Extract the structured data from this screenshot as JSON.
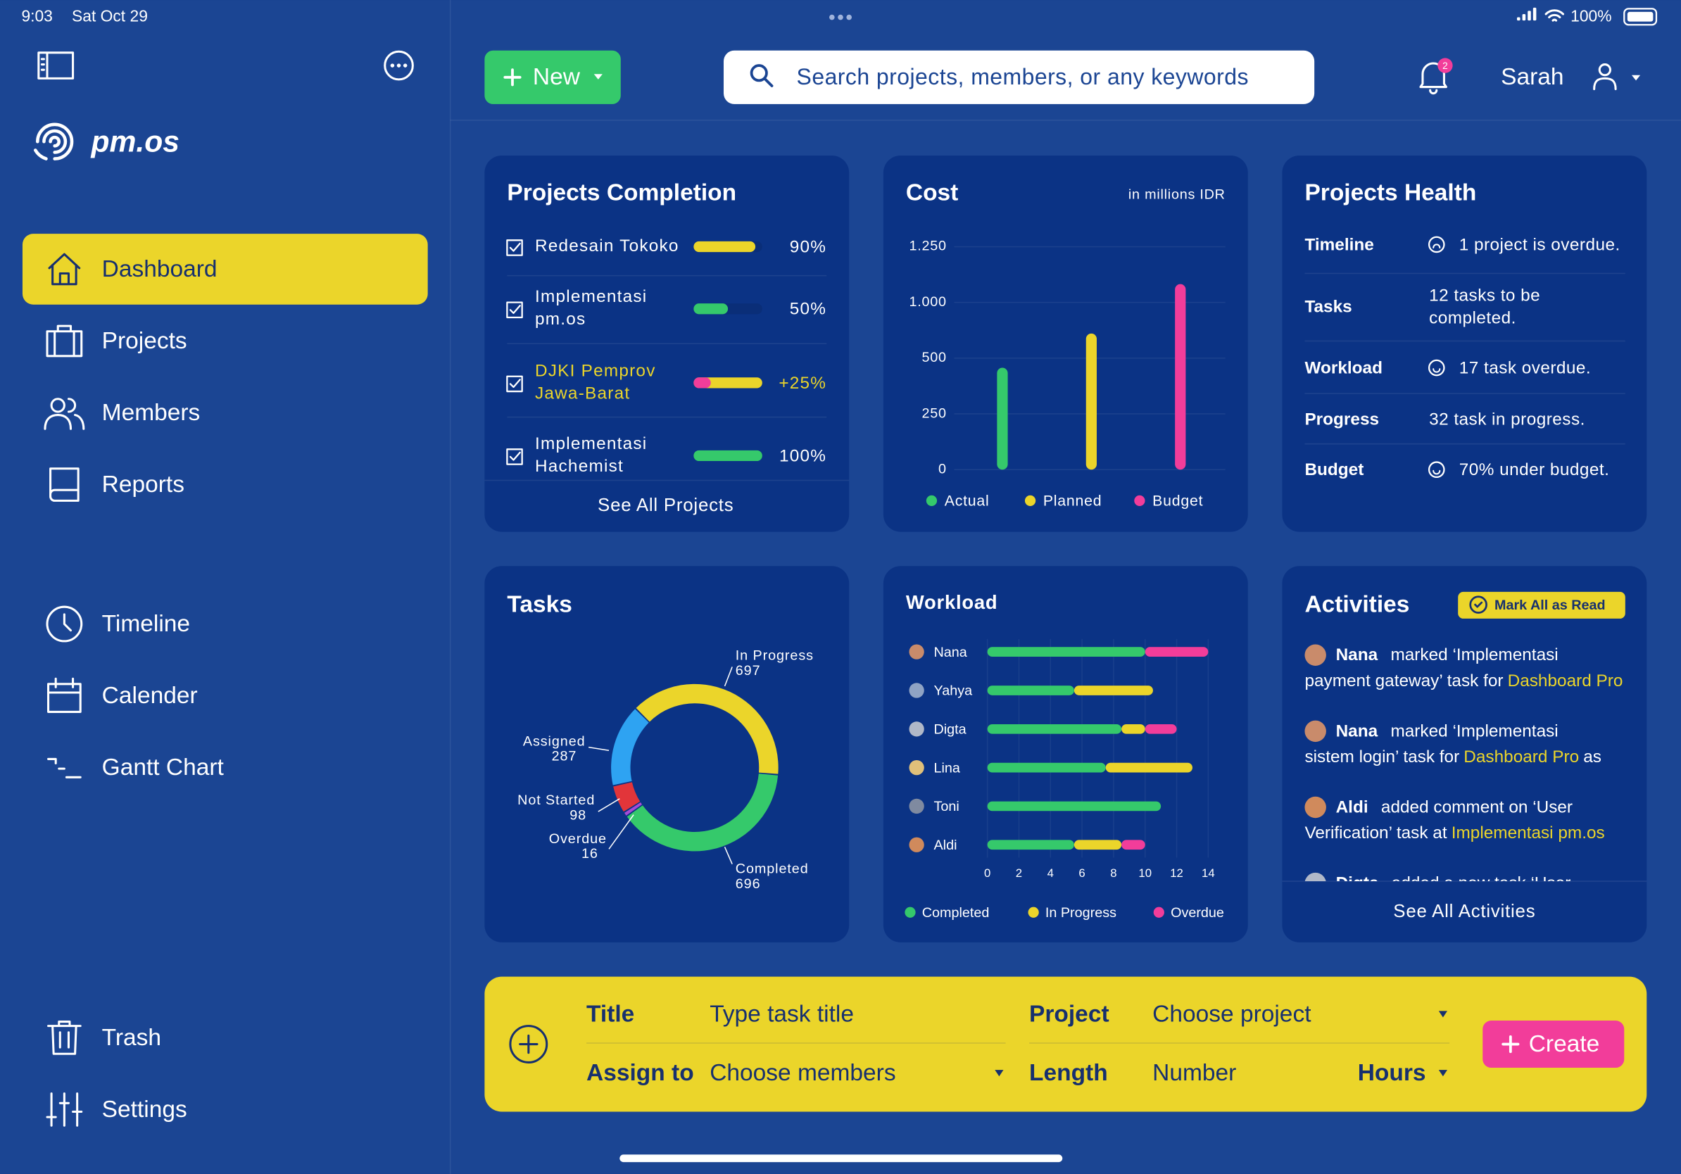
{
  "status_bar": {
    "time": "9:03",
    "date": "Sat Oct 29",
    "battery": "100%"
  },
  "sidebar": {
    "brand": "pm.os",
    "main_nav": [
      "Dashboard",
      "Projects",
      "Members",
      "Reports"
    ],
    "planning_nav": [
      "Timeline",
      "Calender",
      "Gantt Chart"
    ],
    "bottom_nav": [
      "Trash",
      "Settings"
    ]
  },
  "top_bar": {
    "new_button": "New",
    "search_placeholder": "Search projects, members, or any keywords",
    "notification_badge": "2",
    "user_name": "Sarah"
  },
  "projects_completion": {
    "title": "Projects Completion",
    "projects": [
      {
        "name": [
          "Redesain Tokoko"
        ],
        "value": 90,
        "label": "90%",
        "color": "#ebd52a"
      },
      {
        "name": [
          "Implementasi",
          "pm.os"
        ],
        "value": 50,
        "label": "50%",
        "color": "#35c96b"
      },
      {
        "name": [
          "DJKI Pemprov",
          "Jawa-Barat"
        ],
        "value": 25,
        "label": "+25%",
        "color": "#f23d9a",
        "base_color": "#ebd52a"
      },
      {
        "name": [
          "Implementasi",
          "Hachemist"
        ],
        "value": 100,
        "label": "100%",
        "color": "#35c96b"
      }
    ],
    "link": "See All Projects"
  },
  "projects_health": {
    "title": "Projects Health",
    "rows": [
      {
        "label": "Timeline",
        "text": [
          "1 project is overdue."
        ]
      },
      {
        "label": "Tasks",
        "text": [
          "12 tasks to be",
          "completed."
        ]
      },
      {
        "label": "Workload",
        "text": [
          "17 task overdue."
        ]
      },
      {
        "label": "Progress",
        "text": [
          "32 task in progress."
        ]
      },
      {
        "label": "Budget",
        "text": [
          "70% under budget."
        ]
      }
    ]
  },
  "activities": {
    "title": "Activities",
    "mark_all_button": "Mark All as Read",
    "items": [
      {
        "user": "Nana",
        "action": "marked ‘Implementasi",
        "text": "payment gateway’ task for",
        "link": "Dashboard Pro"
      },
      {
        "user": "Nana",
        "action": "marked ‘Implementasi",
        "text": "sistem login’ task for",
        "link": "Dashboard Pro",
        "suffix": "as"
      },
      {
        "user": "Aldi",
        "action": "added comment on ‘User",
        "text": "Verification’ task at",
        "link": "Implementasi pm.os"
      },
      {
        "user": "Digta",
        "action": "added a new task ‘User",
        "text": "",
        "link": ""
      }
    ],
    "link": "See All Activities"
  },
  "quick_add": {
    "title_label": "Title",
    "title_placeholder": "Type task title",
    "project_label": "Project",
    "project_placeholder": "Choose project",
    "assign_label": "Assign to",
    "assign_placeholder": "Choose members",
    "length_label": "Length",
    "length_placeholder": "Number",
    "unit": "Hours",
    "create_button": "Create"
  },
  "chart_data": [
    {
      "type": "bar",
      "title": "Cost",
      "subtitle": "in millions IDR",
      "categories": [
        "Actual",
        "Planned",
        "Budget"
      ],
      "values": [
        457,
        721,
        1082
      ],
      "colors": [
        "#35c96b",
        "#ebd52a",
        "#f23d9a"
      ],
      "ylim": [
        0,
        1250
      ],
      "yticks": [
        0,
        250,
        500,
        {
          "value": 1000,
          "label": "1.000"
        },
        {
          "value": 1250,
          "label": "1.250"
        }
      ],
      "grid": true,
      "legend": "bottom"
    },
    {
      "type": "donut",
      "title": "Tasks",
      "categories": [
        "In Progress",
        "Completed",
        "Overdue",
        "Not Started",
        "Assigned"
      ],
      "values": [
        697,
        696,
        16,
        98,
        287
      ],
      "colors": [
        "#ebd52a",
        "#35c96b",
        "#a64ad6",
        "#e2353a",
        "#2ea3f2"
      ]
    },
    {
      "type": "stacked_barh",
      "title": "Workload",
      "categories": [
        "Nana",
        "Yahya",
        "Digta",
        "Lina",
        "Toni",
        "Aldi"
      ],
      "series": [
        {
          "name": "Completed",
          "color": "#35c96b",
          "values": [
            10,
            5.5,
            8.5,
            7.5,
            11,
            5.5
          ]
        },
        {
          "name": "In Progress",
          "color": "#ebd52a",
          "values": [
            0,
            5,
            1.5,
            5.5,
            0,
            3
          ]
        },
        {
          "name": "Overdue",
          "color": "#f23d9a",
          "values": [
            4,
            0,
            2,
            0,
            0,
            1.5
          ]
        }
      ],
      "xlim": [
        0,
        14
      ],
      "xticks": [
        0,
        2,
        4,
        6,
        8,
        10,
        12,
        14
      ],
      "grid": true,
      "legend": "bottom"
    }
  ]
}
